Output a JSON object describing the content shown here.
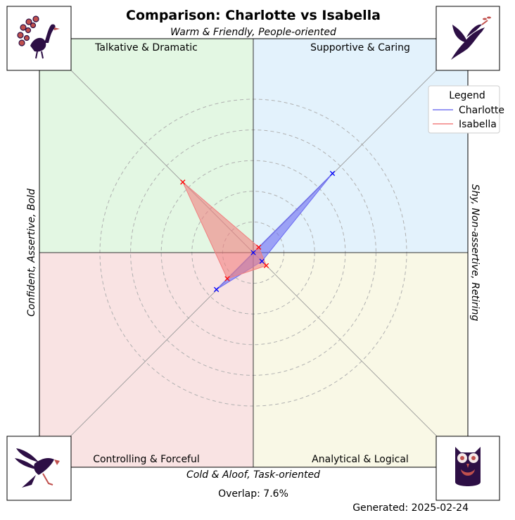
{
  "chart_data": {
    "type": "radar",
    "title": "Comparison: Charlotte vs Isabella",
    "axes": {
      "top": "Warm & Friendly, People-oriented",
      "bottom": "Cold & Aloof, Task-oriented",
      "left": "Confident, Assertive, Bold",
      "right": "Shy, Non-assertive, Retiring"
    },
    "quadrants": [
      {
        "label": "Talkative & Dramatic",
        "position": "top-left",
        "color": "#e3f7e3"
      },
      {
        "label": "Supportive & Caring",
        "position": "top-right",
        "color": "#e3f2fc"
      },
      {
        "label": "Controlling & Forceful",
        "position": "bottom-left",
        "color": "#f9e3e3"
      },
      {
        "label": "Analytical & Logical",
        "position": "bottom-right",
        "color": "#f9f8e6"
      }
    ],
    "directions": [
      "Supportive & Caring",
      "Talkative & Dramatic",
      "Controlling & Forceful",
      "Analytical & Logical"
    ],
    "rmax": 1,
    "series": [
      {
        "name": "Charlotte",
        "color": "#0000ff",
        "fill": "#6b6bf2",
        "values": [
          0.73,
          0.0,
          0.34,
          0.08
        ]
      },
      {
        "name": "Isabella",
        "color": "#ff0000",
        "fill": "#f08080",
        "values": [
          0.05,
          0.65,
          0.24,
          0.12
        ]
      }
    ],
    "rings": [
      0.2,
      0.4,
      0.6,
      0.8,
      1.0
    ],
    "legend": {
      "title": "Legend",
      "position": "top-right"
    },
    "overlap": "Overlap: 7.6%",
    "generated": "Generated: 2025-02-24",
    "icons": {
      "top-left": "peacock-icon",
      "top-right": "dove-icon",
      "bottom-left": "eagle-icon",
      "bottom-right": "owl-icon"
    },
    "icon_color": "#2d0f45",
    "icon_accent": "#c0504d"
  }
}
